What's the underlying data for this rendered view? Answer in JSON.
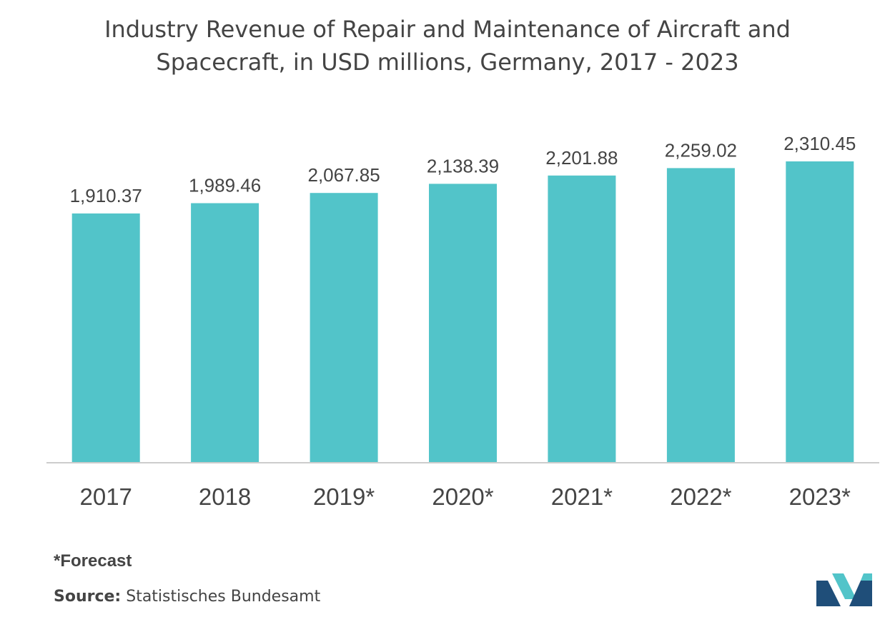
{
  "chart_data": {
    "type": "bar",
    "title": "Industry Revenue of Repair and Maintenance of Aircraft and Spacecraft, in USD millions, Germany, 2017 - 2023",
    "title_lines": [
      "Industry Revenue of Repair and Maintenance of Aircraft and",
      "Spacecraft, in USD millions, Germany, 2017 - 2023"
    ],
    "categories": [
      "2017",
      "2018",
      "2019*",
      "2020*",
      "2021*",
      "2022*",
      "2023*"
    ],
    "values": [
      1910.37,
      1989.46,
      2067.85,
      2138.39,
      2201.88,
      2259.02,
      2310.45
    ],
    "data_labels": [
      "1,910.37",
      "1,989.46",
      "2,067.85",
      "2,138.39",
      "2,201.88",
      "2,259.02",
      "2,310.45"
    ],
    "xlabel": "",
    "ylabel": "",
    "ylim": [
      0,
      2310.45
    ],
    "grid": false,
    "legend": "none",
    "bar_color": "#52c4c9"
  },
  "footnote": {
    "text": "*Forecast"
  },
  "source": {
    "label": "Source:",
    "text": " Statistisches Bundesamt"
  },
  "logo": {
    "icon": "mordor-intelligence-logo-icon",
    "colors": [
      "#1f4e79",
      "#52c4c9"
    ]
  }
}
